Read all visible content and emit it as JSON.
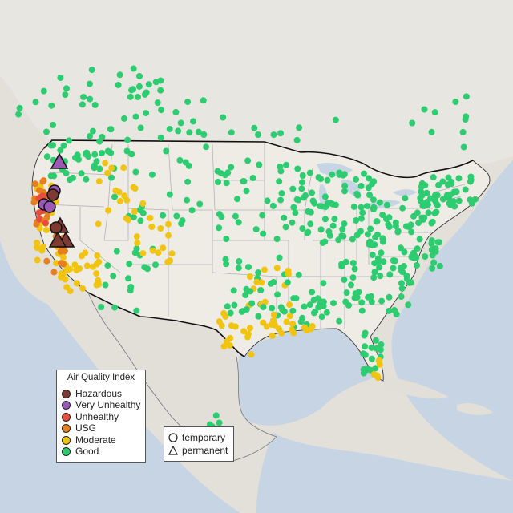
{
  "colors": {
    "land_us": "#efece6",
    "land_foreign": "#e2dfd8",
    "water": "#c6d4e3",
    "border": "#111111",
    "state_line": "#b2b2b2",
    "no_data": "#c0c0c0"
  },
  "legend_aqi": {
    "title": "Air Quality Index",
    "items": [
      {
        "label": "Hazardous",
        "color": "#7e3b33"
      },
      {
        "label": "Very Unhealthy",
        "color": "#9b59b6"
      },
      {
        "label": "Unhealthy",
        "color": "#e74c3c"
      },
      {
        "label": "USG",
        "color": "#e67e22"
      },
      {
        "label": "Moderate",
        "color": "#f1c40f"
      },
      {
        "label": "Good",
        "color": "#2ecc71"
      }
    ]
  },
  "legend_site": {
    "items": [
      {
        "label": "temporary",
        "shape": "circle"
      },
      {
        "label": "permanent",
        "shape": "triangle"
      }
    ]
  }
}
